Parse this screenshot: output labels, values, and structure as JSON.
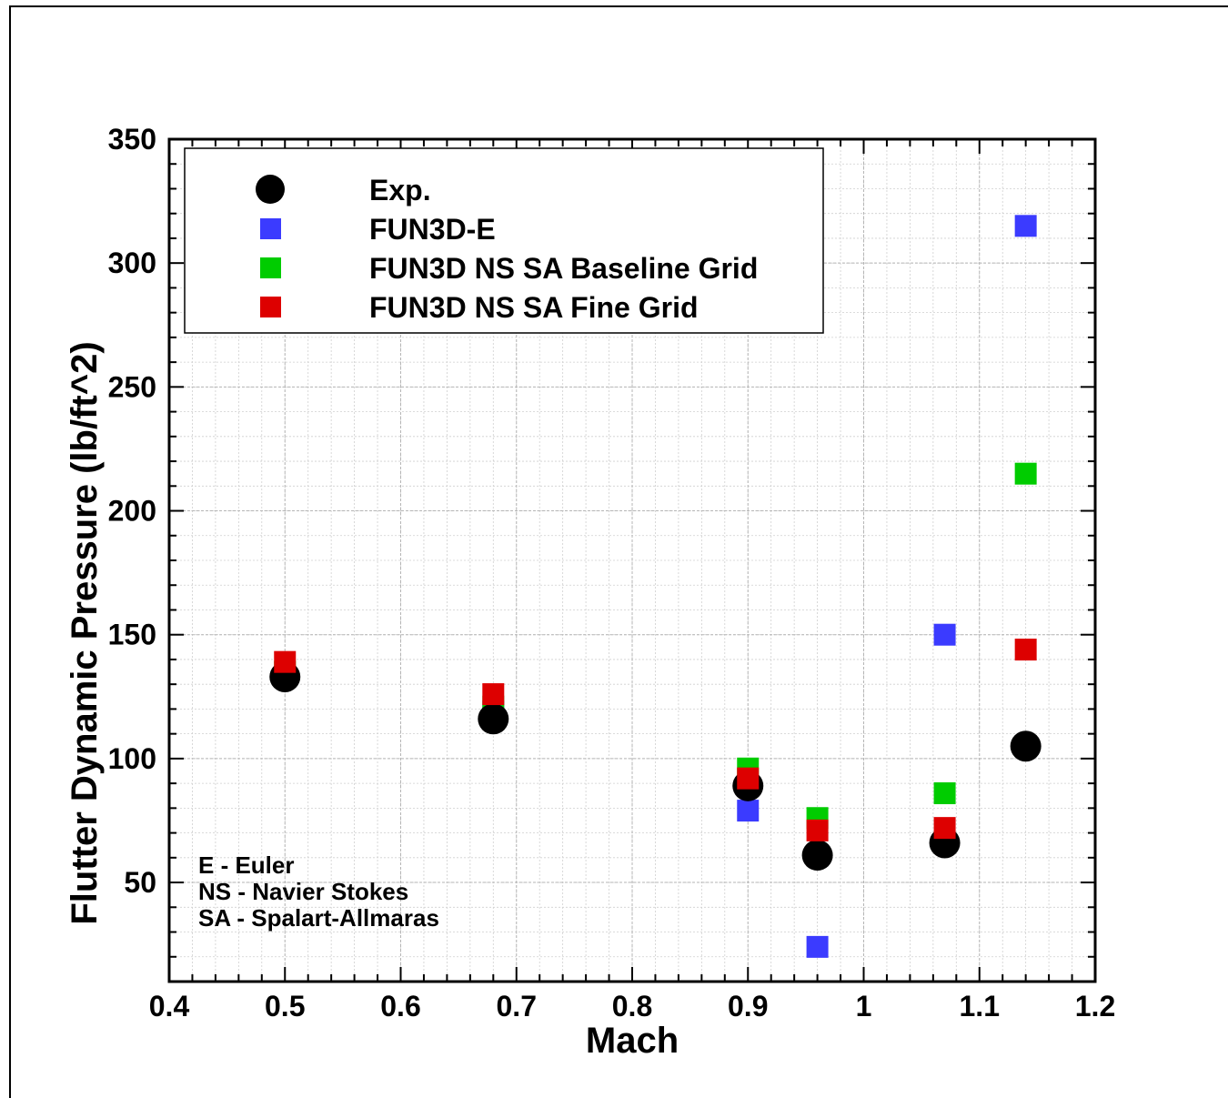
{
  "chart_data": {
    "type": "scatter",
    "title": "",
    "xlabel": "Mach",
    "ylabel": "Flutter Dynamic Pressure (lb/ft^2)",
    "xlim": [
      0.4,
      1.2
    ],
    "ylim": [
      10,
      350
    ],
    "xticks": [
      "0.4",
      "0.5",
      "0.6",
      "0.7",
      "0.8",
      "0.9",
      "1",
      "1.1",
      "1.2"
    ],
    "yticks": [
      "50",
      "100",
      "150",
      "200",
      "250",
      "300",
      "350"
    ],
    "grid": true,
    "legend_position": "top-left",
    "series": [
      {
        "name": "Exp.",
        "marker": "circle",
        "color": "#000000",
        "points": [
          [
            0.5,
            133
          ],
          [
            0.68,
            116
          ],
          [
            0.9,
            89
          ],
          [
            0.96,
            61
          ],
          [
            1.07,
            66
          ],
          [
            1.14,
            105
          ]
        ]
      },
      {
        "name": "FUN3D-E",
        "marker": "square",
        "color": "#3b3bff",
        "points": [
          [
            0.5,
            133
          ],
          [
            0.68,
            119
          ],
          [
            0.9,
            79
          ],
          [
            0.96,
            24
          ],
          [
            1.07,
            150
          ],
          [
            1.14,
            315
          ]
        ]
      },
      {
        "name": "FUN3D NS SA Baseline Grid",
        "marker": "square",
        "color": "#00cc00",
        "points": [
          [
            0.5,
            135
          ],
          [
            0.68,
            121
          ],
          [
            0.9,
            96
          ],
          [
            0.96,
            76
          ],
          [
            1.07,
            86
          ],
          [
            1.14,
            215
          ]
        ]
      },
      {
        "name": "FUN3D NS SA Fine Grid",
        "marker": "square",
        "color": "#dd0000",
        "points": [
          [
            0.5,
            139
          ],
          [
            0.68,
            126
          ],
          [
            0.9,
            92
          ],
          [
            0.96,
            71
          ],
          [
            1.07,
            72
          ],
          [
            1.14,
            144
          ]
        ]
      }
    ],
    "annotations": [
      "E - Euler",
      "NS - Navier Stokes",
      "SA - Spalart-Allmaras"
    ]
  }
}
